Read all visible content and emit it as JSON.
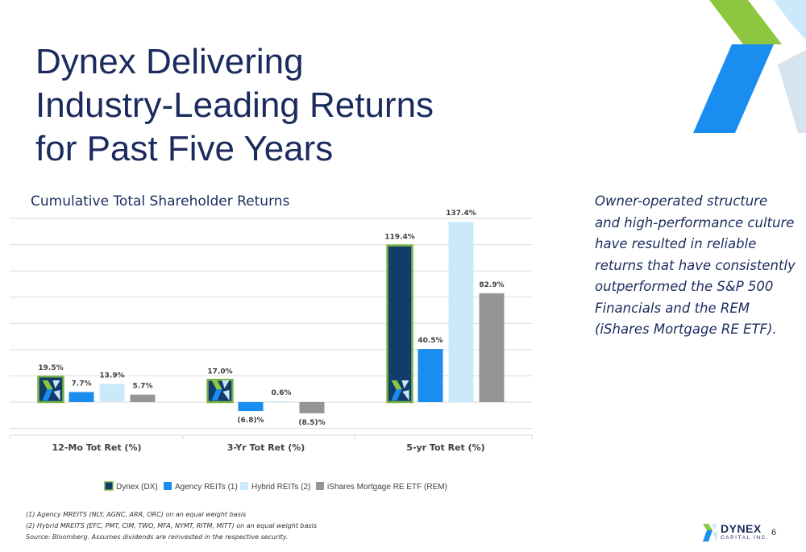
{
  "title_lines": [
    "Dynex Delivering",
    "Industry-Leading Returns",
    "for Past Five Years"
  ],
  "side_text_lines": [
    "Owner-operated structure",
    "and high-performance culture",
    "have resulted in reliable",
    "returns that have consistently",
    "outperformed the S&P 500",
    "Financials and the REM",
    "(iShares Mortgage RE ETF)."
  ],
  "footnotes": [
    "(1) Agency MREITS (NLY, AGNC, ARR, ORC) on an equal weight basis",
    "(2) Hybrid MREITS (EFC, PMT, CIM, TWO, MFA, NYMT, RITM, MITT) on an equal weight basis",
    "Source: Bloomberg. Assumes dividends are reinvested in the respective security."
  ],
  "page_number": "6",
  "logo": {
    "name": "DYNEX",
    "sub": "CAPITAL INC."
  },
  "colors": {
    "title": "#1b2b5e",
    "dynex": "#123d6b",
    "agency": "#1a8df0",
    "hybrid": "#cce9fb",
    "rem": "#959595",
    "highlight_border": "#7ab648",
    "logo_green": "#8dc63f",
    "logo_blue": "#1a8df0"
  },
  "chart_data": {
    "type": "bar",
    "title": "Cumulative Total Shareholder Returns",
    "xlabel": "",
    "ylabel": "",
    "categories": [
      "12-Mo Tot Ret (%)",
      "3-Yr Tot Ret (%)",
      "5-yr Tot Ret (%)"
    ],
    "series": [
      {
        "name": "Dynex (DX)",
        "values": [
          19.5,
          17.0,
          119.4
        ],
        "labels": [
          "19.5%",
          "17.0%",
          "119.4%"
        ],
        "color": "#123d6b"
      },
      {
        "name": "Agency REITs (1)",
        "values": [
          7.7,
          -6.8,
          40.5
        ],
        "labels": [
          "7.7%",
          "(6.8)%",
          "40.5%"
        ],
        "color": "#1a8df0"
      },
      {
        "name": "Hybrid REITs (2)",
        "values": [
          13.9,
          0.6,
          137.4
        ],
        "labels": [
          "13.9%",
          "0.6%",
          "137.4%"
        ],
        "color": "#cce9fb"
      },
      {
        "name": "iShares Mortgage RE ETF (REM)",
        "values": [
          5.7,
          -8.5,
          82.9
        ],
        "labels": [
          "5.7%",
          "(8.5)%",
          "82.9%"
        ],
        "color": "#959595"
      }
    ],
    "ylim": [
      -20,
      140
    ],
    "grid": true,
    "legend": "bottom"
  }
}
